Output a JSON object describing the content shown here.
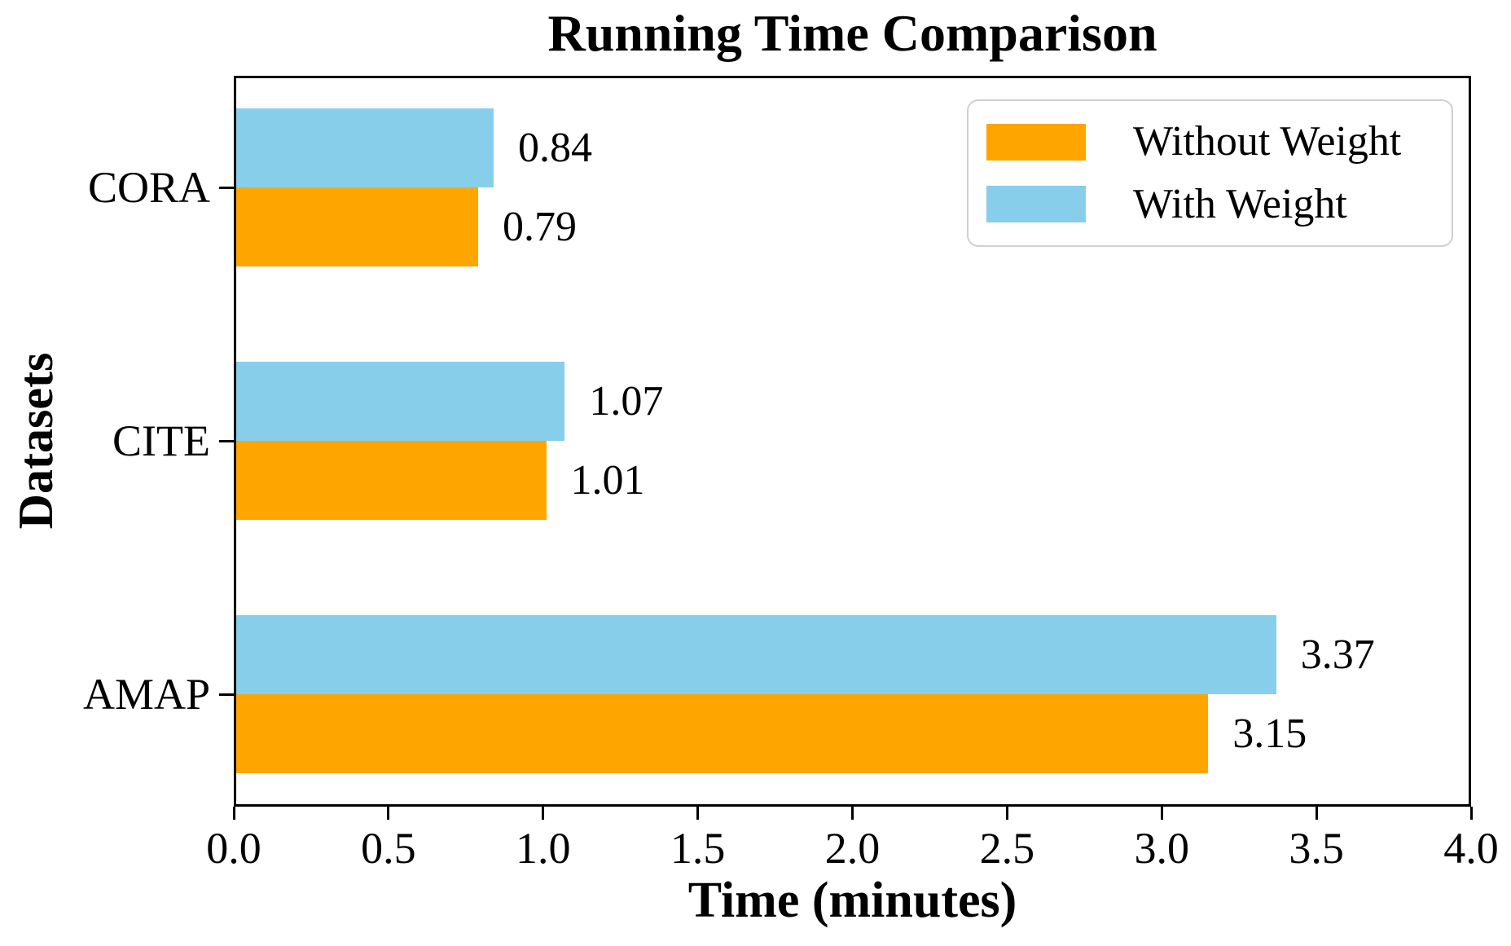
{
  "chart_data": {
    "type": "bar",
    "orientation": "horizontal",
    "title": "Running Time Comparison",
    "xlabel": "Time (minutes)",
    "ylabel": "Datasets",
    "categories": [
      "CORA",
      "CITE",
      "AMAP"
    ],
    "series": [
      {
        "name": "With Weight",
        "color": "#87CEEB",
        "values": [
          0.84,
          1.07,
          3.37
        ]
      },
      {
        "name": "Without Weight",
        "color": "#FFA500",
        "values": [
          0.79,
          1.01,
          3.15
        ]
      }
    ],
    "xlim": [
      0,
      4
    ],
    "xticks": [
      0.0,
      0.5,
      1.0,
      1.5,
      2.0,
      2.5,
      3.0,
      3.5,
      4.0
    ],
    "xtick_labels": [
      "0.0",
      "0.5",
      "1.0",
      "1.5",
      "2.0",
      "2.5",
      "3.0",
      "3.5",
      "4.0"
    ],
    "value_label_format": "2-decimals",
    "grid": false,
    "legend_position": "upper right"
  },
  "legend": {
    "items": [
      {
        "label": "Without Weight",
        "color": "#FFA500"
      },
      {
        "label": "With Weight",
        "color": "#87CEEB"
      }
    ]
  }
}
